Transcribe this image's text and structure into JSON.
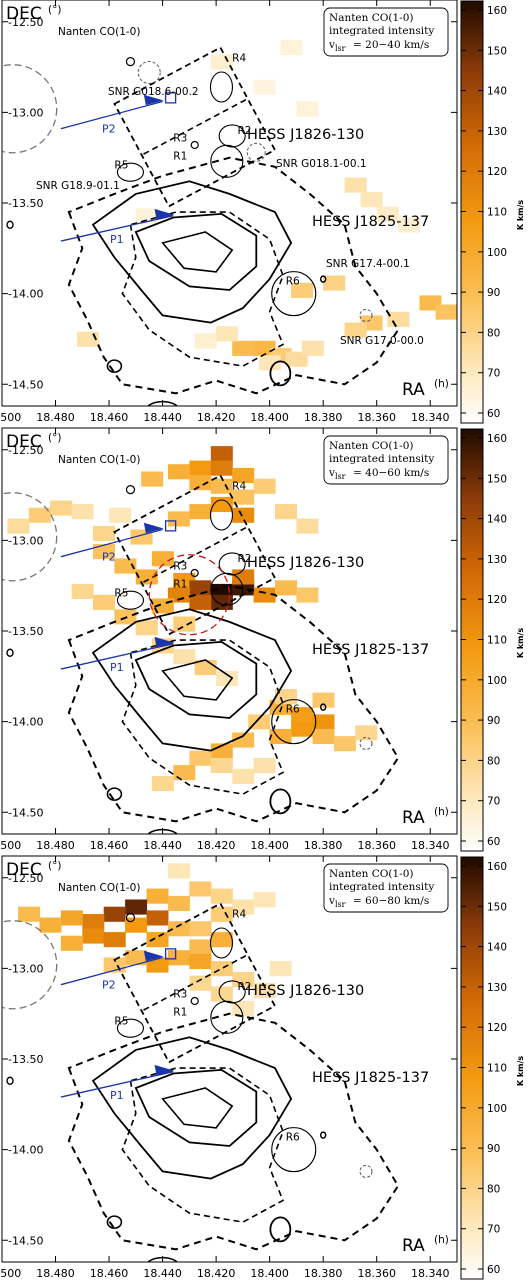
{
  "chart_data": {
    "type": "heatmap",
    "xlabel": "RA",
    "xunit": "(h)",
    "ylabel": "DEC",
    "yunit": "(°)",
    "xlim": [
      18.5,
      18.33
    ],
    "ylim": [
      -14.62,
      -12.38
    ],
    "x_ticks": [
      "18.500",
      "18.480",
      "18.460",
      "18.440",
      "18.420",
      "18.400",
      "18.380",
      "18.360",
      "18.340"
    ],
    "y_ticks": [
      "-12.50",
      "-13.00",
      "-13.50",
      "-14.00",
      "-14.50"
    ],
    "colorbar": {
      "label": "K km/s",
      "min": 60,
      "max": 160,
      "ticks": [
        "60",
        "70",
        "80",
        "90",
        "100",
        "110",
        "120",
        "130",
        "140",
        "150",
        "160"
      ],
      "colors": [
        "#ffffff",
        "#fde9bf",
        "#fbbf55",
        "#f39a10",
        "#d26a06",
        "#8a3a08",
        "#1f0a00"
      ]
    },
    "panels": [
      {
        "survey": "Nanten CO(1-0)",
        "legend": [
          "Nanten CO(1-0)",
          "integrated intensity",
          "v",
          "lsr",
          " = 20−40 km/s"
        ],
        "labels": {
          "snr_g186": "SNR G018.6-00.2",
          "snr_g181": "SNR G018.1-00.1",
          "snr_g189": "SNR G18.9-01.1",
          "snr_g174": "SNR G17.4-00.1",
          "snr_g170": "SNR G17.0-00.0",
          "hess_a": "HESS J1826-130",
          "hess_b": "HESS J1825-137",
          "r1": "R1",
          "r2": "R2",
          "r3": "R3",
          "r4": "R4",
          "r5": "R5",
          "r6": "R6",
          "p1": "P1",
          "p2": "P2"
        },
        "pixels": [
          [
            18.418,
            -12.72,
            72
          ],
          [
            18.392,
            -12.64,
            70
          ],
          [
            18.402,
            -12.86,
            68
          ],
          [
            18.386,
            -12.98,
            70
          ],
          [
            18.368,
            -13.4,
            80
          ],
          [
            18.362,
            -13.48,
            78
          ],
          [
            18.356,
            -13.56,
            75
          ],
          [
            18.348,
            -13.62,
            72
          ],
          [
            18.446,
            -13.57,
            70
          ],
          [
            18.376,
            -13.94,
            86
          ],
          [
            18.388,
            -13.98,
            88
          ],
          [
            18.34,
            -14.05,
            95
          ],
          [
            18.334,
            -14.1,
            92
          ],
          [
            18.362,
            -14.16,
            90
          ],
          [
            18.368,
            -14.2,
            85
          ],
          [
            18.352,
            -14.14,
            82
          ],
          [
            18.41,
            -14.3,
            95
          ],
          [
            18.402,
            -14.3,
            97
          ],
          [
            18.396,
            -14.34,
            88
          ],
          [
            18.39,
            -14.36,
            82
          ],
          [
            18.384,
            -14.3,
            80
          ],
          [
            18.468,
            -14.25,
            80
          ],
          [
            18.416,
            -14.22,
            78
          ],
          [
            18.424,
            -14.26,
            72
          ],
          [
            18.4,
            -14.38,
            78
          ]
        ]
      },
      {
        "survey": "Nanten CO(1-0)",
        "legend": [
          "Nanten CO(1-0)",
          "integrated intensity",
          "v",
          "lsr",
          " = 40−60 km/s"
        ],
        "labels": {
          "hess_a": "HESS J1826-130",
          "hess_b": "HESS J1825-137",
          "r1": "R1",
          "r2": "R2",
          "r3": "R3",
          "r4": "R4",
          "r5": "R5",
          "r6": "R6",
          "p1": "P1",
          "p2": "P2"
        },
        "pixels": [
          [
            18.418,
            -12.52,
            130
          ],
          [
            18.426,
            -12.6,
            110
          ],
          [
            18.418,
            -12.6,
            120
          ],
          [
            18.41,
            -12.64,
            105
          ],
          [
            18.434,
            -12.62,
            100
          ],
          [
            18.444,
            -12.66,
            95
          ],
          [
            18.426,
            -12.68,
            100
          ],
          [
            18.418,
            -12.7,
            95
          ],
          [
            18.402,
            -12.7,
            88
          ],
          [
            18.41,
            -12.76,
            92
          ],
          [
            18.394,
            -12.84,
            85
          ],
          [
            18.386,
            -12.92,
            82
          ],
          [
            18.418,
            -12.8,
            110
          ],
          [
            18.41,
            -12.86,
            115
          ],
          [
            18.426,
            -12.84,
            100
          ],
          [
            18.434,
            -12.88,
            95
          ],
          [
            18.478,
            -12.82,
            85
          ],
          [
            18.486,
            -12.86,
            88
          ],
          [
            18.47,
            -12.84,
            80
          ],
          [
            18.494,
            -12.92,
            82
          ],
          [
            18.456,
            -12.86,
            78
          ],
          [
            18.462,
            -12.96,
            85
          ],
          [
            18.448,
            -12.98,
            90
          ],
          [
            18.462,
            -13.06,
            92
          ],
          [
            18.454,
            -13.14,
            95
          ],
          [
            18.44,
            -13.1,
            100
          ],
          [
            18.446,
            -13.2,
            100
          ],
          [
            18.432,
            -13.22,
            110
          ],
          [
            18.426,
            -13.26,
            140
          ],
          [
            18.418,
            -13.28,
            160
          ],
          [
            18.41,
            -13.26,
            155
          ],
          [
            18.418,
            -13.34,
            150
          ],
          [
            18.426,
            -13.34,
            130
          ],
          [
            18.402,
            -13.3,
            115
          ],
          [
            18.434,
            -13.3,
            118
          ],
          [
            18.41,
            -13.2,
            120
          ],
          [
            18.394,
            -13.26,
            95
          ],
          [
            18.386,
            -13.3,
            90
          ],
          [
            18.44,
            -13.36,
            100
          ],
          [
            18.454,
            -13.42,
            92
          ],
          [
            18.462,
            -13.34,
            88
          ],
          [
            18.47,
            -13.28,
            84
          ],
          [
            18.446,
            -13.48,
            85
          ],
          [
            18.432,
            -13.46,
            88
          ],
          [
            18.44,
            -13.58,
            85
          ],
          [
            18.432,
            -13.64,
            80
          ],
          [
            18.424,
            -13.7,
            88
          ],
          [
            18.416,
            -13.76,
            78
          ],
          [
            18.396,
            -13.92,
            100
          ],
          [
            18.388,
            -13.96,
            108
          ],
          [
            18.38,
            -14.0,
            112
          ],
          [
            18.388,
            -14.04,
            110
          ],
          [
            18.396,
            -14.08,
            100
          ],
          [
            18.38,
            -14.08,
            95
          ],
          [
            18.372,
            -14.12,
            90
          ],
          [
            18.364,
            -14.06,
            84
          ],
          [
            18.404,
            -14.0,
            88
          ],
          [
            18.41,
            -14.1,
            95
          ],
          [
            18.418,
            -14.16,
            100
          ],
          [
            18.426,
            -14.2,
            90
          ],
          [
            18.418,
            -14.24,
            84
          ],
          [
            18.41,
            -14.3,
            80
          ],
          [
            18.432,
            -14.28,
            95
          ],
          [
            18.44,
            -14.34,
            84
          ],
          [
            18.402,
            -14.24,
            80
          ],
          [
            18.394,
            -13.86,
            85
          ],
          [
            18.38,
            -13.88,
            90
          ]
        ]
      },
      {
        "survey": "Nanten CO(1-0)",
        "legend": [
          "Nanten CO(1-0)",
          "integrated intensity",
          "v",
          "lsr",
          " = 60−80 km/s"
        ],
        "labels": {
          "hess_a": "HESS J1826-130",
          "hess_b": "HESS J1825-137",
          "r1": "R1",
          "r2": "R2",
          "r3": "R3",
          "r4": "R4",
          "r5": "R5",
          "r6": "R6",
          "p1": "P1",
          "p2": "P2"
        },
        "pixels": [
          [
            18.434,
            -12.46,
            78
          ],
          [
            18.426,
            -12.56,
            90
          ],
          [
            18.442,
            -12.6,
            100
          ],
          [
            18.434,
            -12.64,
            95
          ],
          [
            18.418,
            -12.6,
            85
          ],
          [
            18.41,
            -12.66,
            80
          ],
          [
            18.402,
            -12.62,
            78
          ],
          [
            18.418,
            -12.7,
            88
          ],
          [
            18.45,
            -12.66,
            150
          ],
          [
            18.458,
            -12.7,
            140
          ],
          [
            18.442,
            -12.72,
            130
          ],
          [
            18.466,
            -12.74,
            120
          ],
          [
            18.45,
            -12.76,
            110
          ],
          [
            18.474,
            -12.72,
            105
          ],
          [
            18.482,
            -12.76,
            100
          ],
          [
            18.49,
            -12.7,
            95
          ],
          [
            18.466,
            -12.82,
            115
          ],
          [
            18.458,
            -12.84,
            120
          ],
          [
            18.474,
            -12.86,
            100
          ],
          [
            18.442,
            -12.84,
            105
          ],
          [
            18.434,
            -12.78,
            95
          ],
          [
            18.426,
            -12.78,
            90
          ],
          [
            18.418,
            -12.84,
            100
          ],
          [
            18.426,
            -12.88,
            95
          ],
          [
            18.434,
            -12.94,
            100
          ],
          [
            18.442,
            -12.98,
            110
          ],
          [
            18.426,
            -12.96,
            105
          ],
          [
            18.45,
            -12.94,
            95
          ],
          [
            18.458,
            -12.98,
            90
          ],
          [
            18.418,
            -13.0,
            88
          ],
          [
            18.41,
            -13.06,
            85
          ],
          [
            18.402,
            -13.12,
            80
          ],
          [
            18.418,
            -13.14,
            84
          ],
          [
            18.426,
            -13.08,
            84
          ],
          [
            18.41,
            -13.22,
            78
          ],
          [
            18.396,
            -13.0,
            78
          ]
        ]
      }
    ]
  }
}
